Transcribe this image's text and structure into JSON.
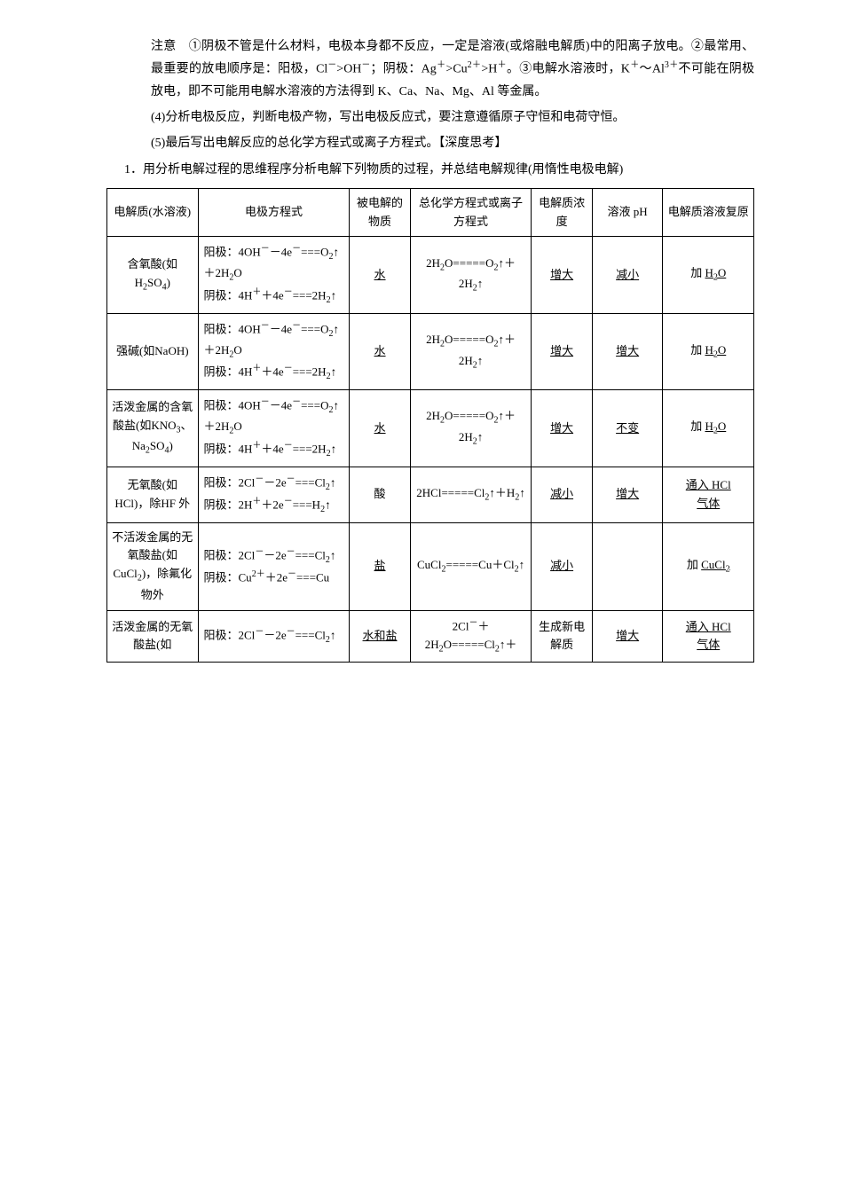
{
  "notes": {
    "note1": "注意　①阴极不管是什么材料，电极本身都不反应，一定是溶液(或熔融电解质)中的阳离子放电。②最常用、最重要的放电顺序是：阳极，Cl⁻>OH⁻；阴极：Ag⁺>Cu²⁺>H⁺。③电解水溶液时，K⁺～Al³⁺不可能在阴极放电，即不可能用电解水溶液的方法得到 K、Ca、Na、Mg、Al 等金属。",
    "note4": "(4)分析电极反应，判断电极产物，写出电极反应式，要注意遵循原子守恒和电荷守恒。",
    "note5": "(5)最后写出电解反应的总化学方程式或离子方程式。【深度思考】",
    "q1": "1．用分析电解过程的思维程序分析电解下列物质的过程，并总结电解规律(用惰性电极电解)"
  },
  "headers": {
    "c0": "电解质(水溶液)",
    "c1": "电极方程式",
    "c2": "被电解的物质",
    "c3": "总化学方程式或离子方程式",
    "c4": "电解质浓度",
    "c5": "溶液 pH",
    "c6": "电解质溶液复原"
  },
  "rows": [
    {
      "c0": "含氧酸(如H₂SO₄)",
      "c1_a": "阳极：4OH⁻－4e⁻===O₂↑＋2H₂O",
      "c1_b": "阴极：4H⁺＋4e⁻===2H₂↑",
      "c2": "水",
      "c3": "2H₂O=====O₂↑＋2H₂↑",
      "c4": "增大",
      "c5": "减小",
      "c6_pre": "加 ",
      "c6_u": "H₂O"
    },
    {
      "c0": "强碱(如NaOH)",
      "c1_a": "阳极：4OH⁻－4e⁻===O₂↑＋2H₂O",
      "c1_b": "阴极：4H⁺＋4e⁻===2H₂↑",
      "c2": "水",
      "c3": "2H₂O=====O₂↑＋2H₂↑",
      "c4": "增大",
      "c5": "增大",
      "c6_pre": "加 ",
      "c6_u": "H₂O"
    },
    {
      "c0": "活泼金属的含氧酸盐(如KNO₃、Na₂SO₄)",
      "c1_a": "阳极：4OH⁻－4e⁻===O₂↑＋2H₂O",
      "c1_b": "阴极：4H⁺＋4e⁻===2H₂↑",
      "c2": "水",
      "c3": "2H₂O=====O₂↑＋2H₂↑",
      "c4": "增大",
      "c5": "不变",
      "c6_pre": "加 ",
      "c6_u": "H₂O"
    },
    {
      "c0": "无氧酸(如HCl)，除HF 外",
      "c1_a": "阳极：2Cl⁻－2e⁻===Cl₂↑",
      "c1_b": "阴极：2H⁺＋2e⁻===H₂↑",
      "c2": "酸",
      "c3": "2HCl=====Cl₂↑＋H₂↑",
      "c4": "减小",
      "c5": "增大",
      "c6_u": "通入 HCl气体"
    },
    {
      "c0": "不活泼金属的无氧酸盐(如CuCl₂)，除氟化物外",
      "c1_a": "阳极：2Cl⁻－2e⁻===Cl₂↑",
      "c1_b": "阴极：Cu²⁺＋2e⁻===Cu",
      "c2": "盐",
      "c3": "CuCl₂=====Cu＋Cl₂↑",
      "c4": "减小",
      "c5": "",
      "c6_pre": "加 ",
      "c6_u": "CuCl₂"
    },
    {
      "c0": "活泼金属的无氧酸盐(如",
      "c1_a": "阳极：2Cl⁻－2e⁻===Cl₂↑",
      "c1_b": "",
      "c2": "水和盐",
      "c3": "2Cl⁻＋2H₂O=====Cl₂↑＋",
      "c4": "生成新电解质",
      "c5": "增大",
      "c6_u": "通入 HCl气体"
    }
  ]
}
